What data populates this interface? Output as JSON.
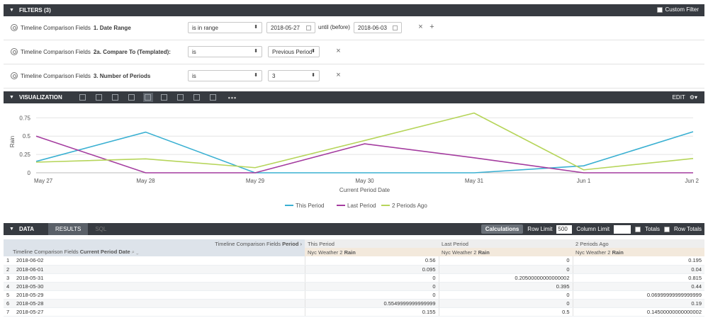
{
  "filters": {
    "title": "FILTERS (3)",
    "custom_filter": "Custom Filter",
    "rows": [
      {
        "field": "Timeline Comparison Fields",
        "name": "1. Date Range",
        "op": "is in range",
        "v1": "2018-05-27",
        "mid": "until (before)",
        "v2": "2018-06-03"
      },
      {
        "field": "Timeline Comparison Fields",
        "name": "2a. Compare To (Templated):",
        "op": "is",
        "v1": "Previous Period"
      },
      {
        "field": "Timeline Comparison Fields",
        "name": "3. Number of Periods",
        "op": "is",
        "v1": "3"
      }
    ]
  },
  "viz": {
    "title": "VISUALIZATION",
    "edit": "EDIT",
    "more": "•••"
  },
  "chart_data": {
    "type": "line",
    "x": [
      "May 27",
      "May 28",
      "May 29",
      "May 30",
      "May 31",
      "Jun 1",
      "Jun 2"
    ],
    "xlabel": "Current Period Date",
    "ylabel": "Rain",
    "yticks": [
      "0",
      "0.25",
      "0.5",
      "0.75"
    ],
    "ylim": [
      0,
      0.85
    ],
    "grid": true,
    "legend": "bottom",
    "series": [
      {
        "name": "This Period",
        "color": "#3ab0d2",
        "values": [
          0.155,
          0.555,
          0,
          0,
          0,
          0.095,
          0.56
        ]
      },
      {
        "name": "Last Period",
        "color": "#a43c9f",
        "values": [
          0.5,
          0,
          0,
          0.395,
          0.205,
          0,
          0
        ]
      },
      {
        "name": "2 Periods Ago",
        "color": "#b6d55a",
        "values": [
          0.145,
          0.19,
          0.07,
          0.44,
          0.815,
          0.04,
          0.195
        ]
      }
    ]
  },
  "data": {
    "title": "DATA",
    "tab_results": "RESULTS",
    "tab_sql": "SQL",
    "calculations": "Calculations",
    "row_limit_label": "Row Limit",
    "row_limit": "500",
    "column_limit_label": "Column Limit",
    "totals": "Totals",
    "row_totals": "Row Totals",
    "pivot_label": "Timeline Comparison Fields",
    "pivot_name": "Period",
    "period_cols": [
      "This Period",
      "Last Period",
      "2 Periods Ago"
    ],
    "dim_label": "Timeline Comparison Fields",
    "dim_name": "Current Period Date",
    "measure_label": "Nyc Weather 2",
    "measure_name": "Rain",
    "rows": [
      {
        "n": "1",
        "date": "2018-06-02",
        "v": [
          "0.56",
          "0",
          "0.195"
        ]
      },
      {
        "n": "2",
        "date": "2018-06-01",
        "v": [
          "0.095",
          "0",
          "0.04"
        ]
      },
      {
        "n": "3",
        "date": "2018-05-31",
        "v": [
          "0",
          "0.20500000000000002",
          "0.815"
        ]
      },
      {
        "n": "4",
        "date": "2018-05-30",
        "v": [
          "0",
          "0.395",
          "0.44"
        ]
      },
      {
        "n": "5",
        "date": "2018-05-29",
        "v": [
          "0",
          "0",
          "0.06999999999999999"
        ]
      },
      {
        "n": "6",
        "date": "2018-05-28",
        "v": [
          "0.5549999999999999",
          "0",
          "0.19"
        ]
      },
      {
        "n": "7",
        "date": "2018-05-27",
        "v": [
          "0.155",
          "0.5",
          "0.14500000000000002"
        ]
      }
    ]
  }
}
